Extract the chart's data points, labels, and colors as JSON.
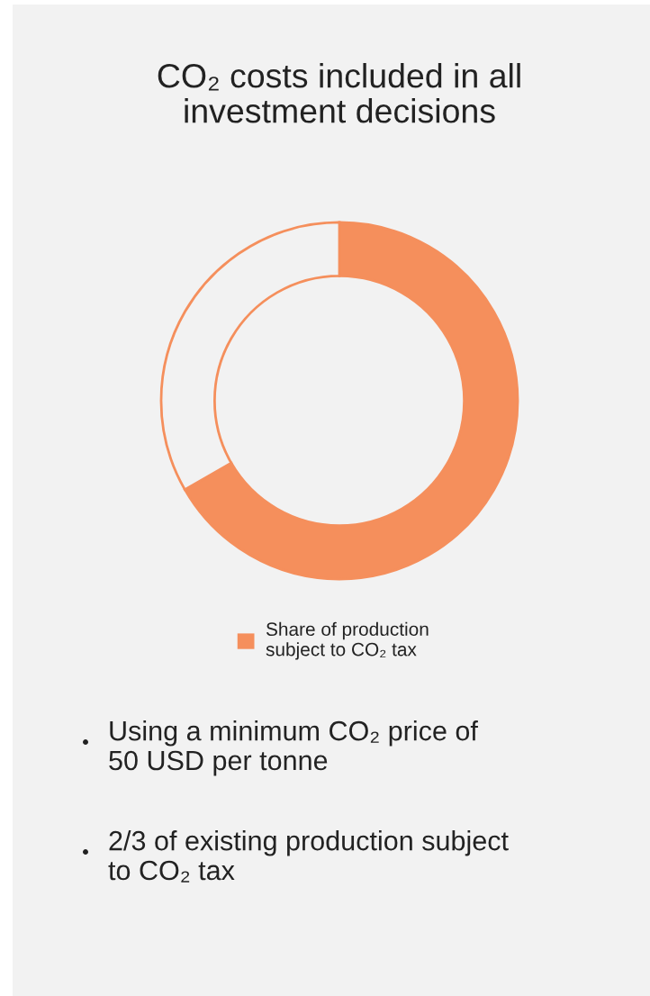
{
  "chart_data": {
    "type": "donut",
    "title": "CO₂ costs included in all\ninvestment decisions",
    "categories": [
      "Share of production\nsubject to CO₂ tax",
      null
    ],
    "values": [
      66.7,
      33.3
    ],
    "colors": [
      "#f58f5c",
      "#f2f2f2"
    ],
    "legend": "bottom",
    "annotations": [
      "Using a minimum CO₂ price of\n50 USD per tonne",
      "2/3 of existing production subject\nto CO₂ tax"
    ]
  }
}
